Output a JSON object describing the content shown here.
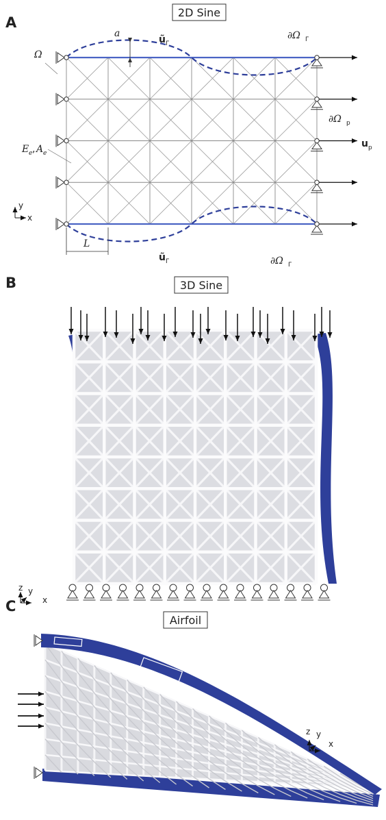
{
  "panels": [
    {
      "label": "A",
      "title": "2D Sine"
    },
    {
      "label": "B",
      "title": "3D Sine"
    },
    {
      "label": "C",
      "title": "Airfoil"
    }
  ],
  "panel_a": {
    "amplitude": "a",
    "prescribed_top": {
      "symbol": "ũ",
      "subscript": "Γ"
    },
    "prescribed_bottom": {
      "symbol": "ũ",
      "subscript": "Γ"
    },
    "boundary_top": {
      "symbol": "∂Ω",
      "subscript": "Γ"
    },
    "boundary_bottom": {
      "symbol": "∂Ω",
      "subscript": "Γ"
    },
    "domain": "Ω",
    "boundary_p": {
      "symbol": "∂Ω",
      "subscript": "p"
    },
    "load": {
      "symbol": "u",
      "subscript": "p"
    },
    "element_modulus": {
      "symbol": "E",
      "subscript": "e"
    },
    "separator": ",",
    "element_area": {
      "symbol": "A",
      "subscript": "e"
    },
    "length": "L",
    "axes": {
      "y": "y",
      "x": "x"
    }
  },
  "panel_b": {
    "axes": {
      "z": "z",
      "y": "y",
      "x": "x"
    }
  },
  "panel_c": {
    "axes": {
      "z": "z",
      "y": "y",
      "x": "x"
    }
  }
}
